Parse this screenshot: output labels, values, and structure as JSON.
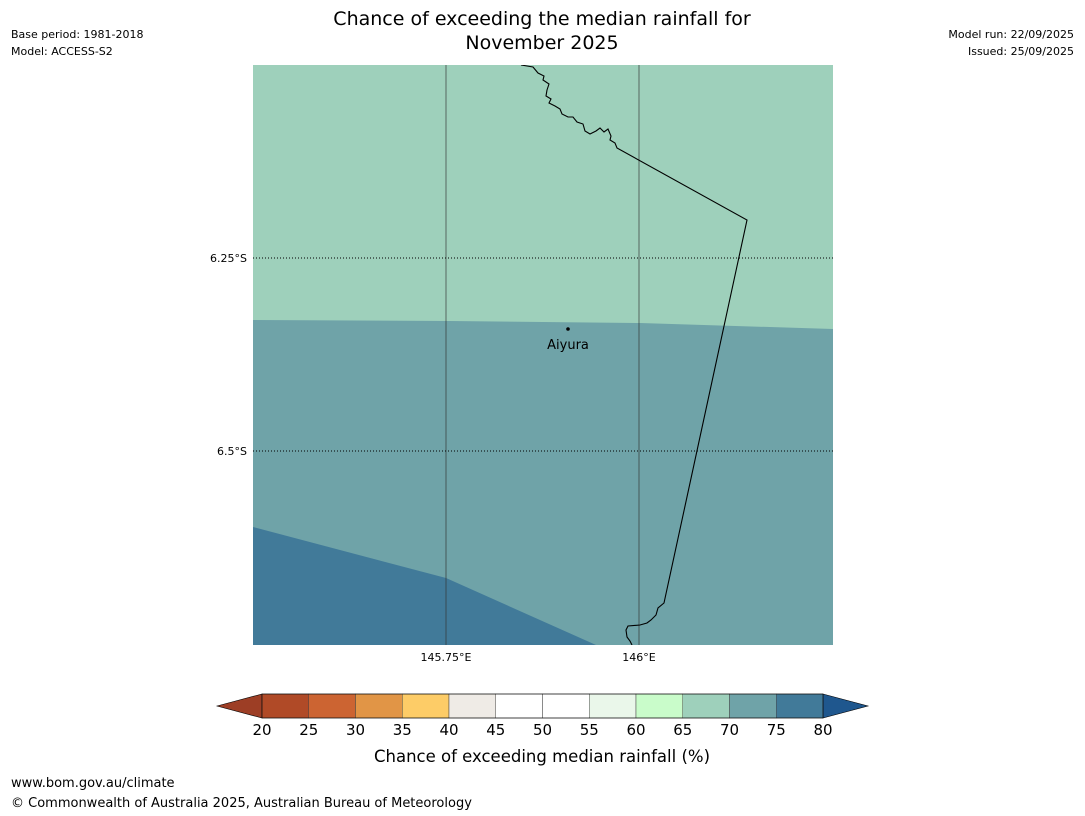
{
  "header": {
    "title_line1": "Chance of exceeding the median rainfall for",
    "title_line2": "November 2025",
    "base_period": "Base period: 1981-2018",
    "model": "Model: ACCESS-S2",
    "model_run": "Model run: 22/09/2025",
    "issued": "Issued: 25/09/2025"
  },
  "map": {
    "lat_labels": [
      "6.25°S",
      "6.5°S"
    ],
    "lon_labels": [
      "145.75°E",
      "146°E"
    ],
    "town": {
      "name": "Aiyura"
    },
    "zone_colors": {
      "band_65_70": "#9ed0bb",
      "band_70_75": "#6fa3a8",
      "band_75_80": "#417a99"
    },
    "border_color": "#000000",
    "grid_color": "#333333"
  },
  "colorbar": {
    "title": "Chance of exceeding median rainfall (%)",
    "ticks": [
      "20",
      "25",
      "30",
      "35",
      "40",
      "45",
      "50",
      "55",
      "60",
      "65",
      "70",
      "75",
      "80"
    ],
    "under_color": "#9d3e25",
    "over_color": "#1f578e",
    "colors": [
      "#b04a27",
      "#cc6432",
      "#e19546",
      "#fdcc67",
      "#efebe6",
      "#ffffff",
      "#ffffff",
      "#eaf7ea",
      "#c9fcca",
      "#9ed0bb",
      "#6fa3a8",
      "#417a99"
    ]
  },
  "footer": {
    "url": "www.bom.gov.au/climate",
    "copyright": "© Commonwealth of Australia 2025, Australian Bureau of Meteorology"
  }
}
